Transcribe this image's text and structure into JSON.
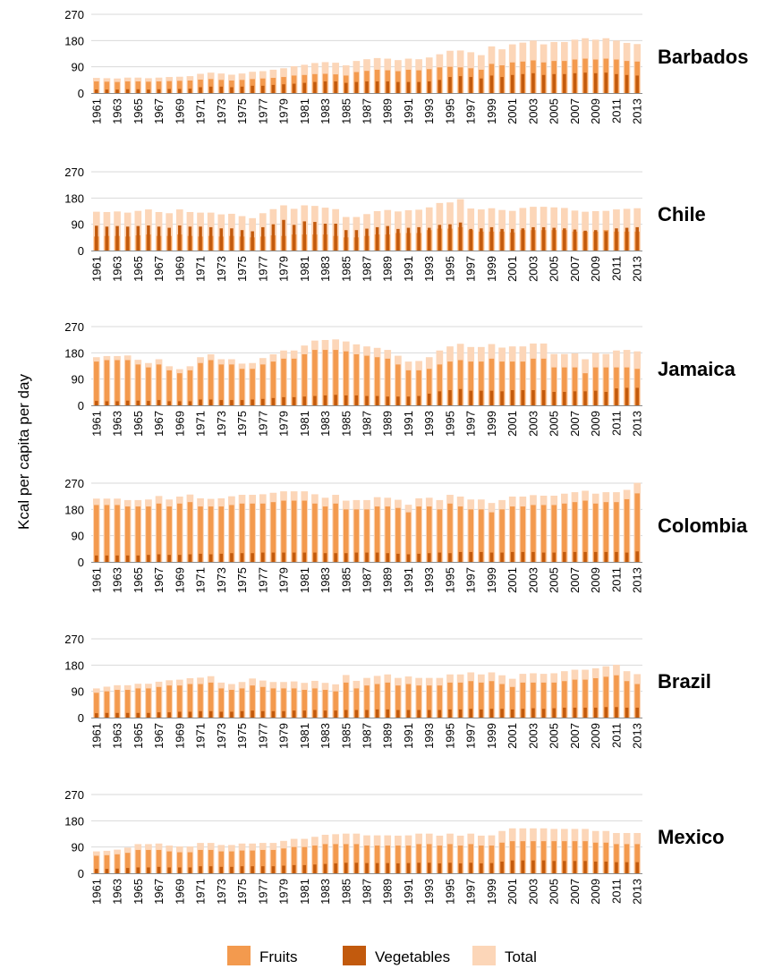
{
  "colors": {
    "fruits": "#f39a4e",
    "vegetables": "#c25a0d",
    "total": "#fcd6b8",
    "grid": "#d9d9d9",
    "axis": "#8c8c8c"
  },
  "legend": [
    {
      "key": "fruits",
      "label": "Fruits"
    },
    {
      "key": "vegetables",
      "label": "Vegetables"
    },
    {
      "key": "total",
      "label": "Total"
    }
  ],
  "chart_data": {
    "type": "bar",
    "ylabel": "Kcal per capita per day",
    "ylim": [
      0,
      270
    ],
    "yticks": [
      0,
      90,
      180,
      270
    ],
    "x": [
      1961,
      1962,
      1963,
      1964,
      1965,
      1966,
      1967,
      1968,
      1969,
      1970,
      1971,
      1972,
      1973,
      1974,
      1975,
      1976,
      1977,
      1978,
      1979,
      1980,
      1981,
      1982,
      1983,
      1984,
      1985,
      1986,
      1987,
      1988,
      1989,
      1990,
      1991,
      1992,
      1993,
      1994,
      1995,
      1996,
      1997,
      1998,
      1999,
      2000,
      2001,
      2002,
      2003,
      2004,
      2005,
      2006,
      2007,
      2008,
      2009,
      2010,
      2011,
      2012,
      2013
    ],
    "xtick_labels": [
      "1961",
      "1963",
      "1965",
      "1967",
      "1969",
      "1971",
      "1973",
      "1975",
      "1977",
      "1979",
      "1981",
      "1983",
      "1985",
      "1987",
      "1989",
      "1991",
      "1993",
      "1995",
      "1997",
      "1999",
      "2001",
      "2003",
      "2005",
      "2007",
      "2009",
      "2011",
      "2013"
    ],
    "grid": true,
    "legend_position": "bottom",
    "panels": [
      {
        "name": "Barbados",
        "fruits": [
          40,
          39,
          38,
          40,
          40,
          39,
          40,
          41,
          42,
          43,
          46,
          48,
          45,
          43,
          45,
          48,
          50,
          52,
          55,
          60,
          62,
          65,
          66,
          64,
          60,
          72,
          76,
          80,
          78,
          75,
          80,
          78,
          82,
          88,
          90,
          88,
          85,
          80,
          100,
          95,
          105,
          108,
          112,
          105,
          110,
          110,
          115,
          118,
          115,
          118,
          115,
          110,
          108
        ],
        "vegetables": [
          12,
          12,
          12,
          13,
          13,
          12,
          13,
          14,
          14,
          15,
          20,
          22,
          22,
          20,
          22,
          25,
          25,
          28,
          30,
          32,
          35,
          38,
          40,
          40,
          35,
          38,
          40,
          40,
          40,
          38,
          38,
          38,
          40,
          45,
          55,
          58,
          55,
          50,
          60,
          55,
          62,
          65,
          68,
          62,
          65,
          65,
          68,
          70,
          68,
          70,
          65,
          62,
          60
        ],
        "total": [
          52,
          51,
          50,
          53,
          53,
          51,
          53,
          55,
          56,
          58,
          66,
          70,
          67,
          63,
          67,
          73,
          75,
          80,
          85,
          92,
          97,
          103,
          106,
          104,
          95,
          110,
          116,
          120,
          118,
          113,
          118,
          116,
          122,
          133,
          145,
          146,
          140,
          130,
          160,
          150,
          167,
          173,
          180,
          167,
          175,
          175,
          183,
          188,
          183,
          188,
          180,
          172,
          168
        ]
      },
      {
        "name": "Chile",
        "fruits": [
          48,
          50,
          50,
          48,
          52,
          55,
          50,
          50,
          55,
          50,
          48,
          50,
          48,
          50,
          48,
          45,
          48,
          52,
          50,
          55,
          55,
          55,
          55,
          50,
          45,
          45,
          50,
          55,
          55,
          60,
          60,
          60,
          70,
          75,
          75,
          80,
          70,
          65,
          65,
          65,
          62,
          70,
          70,
          70,
          70,
          70,
          65,
          65,
          65,
          70,
          65,
          65,
          65
        ],
        "vegetables": [
          85,
          82,
          84,
          82,
          84,
          86,
          82,
          78,
          86,
          82,
          82,
          80,
          76,
          76,
          70,
          66,
          80,
          90,
          105,
          88,
          100,
          98,
          92,
          92,
          70,
          70,
          75,
          80,
          84,
          74,
          78,
          80,
          78,
          88,
          90,
          96,
          74,
          76,
          80,
          74,
          74,
          76,
          80,
          80,
          78,
          76,
          72,
          68,
          70,
          66,
          76,
          78,
          80
        ],
        "total": [
          133,
          132,
          134,
          130,
          136,
          141,
          132,
          128,
          141,
          132,
          130,
          130,
          124,
          126,
          118,
          111,
          128,
          142,
          155,
          143,
          155,
          153,
          147,
          142,
          115,
          115,
          125,
          135,
          139,
          134,
          138,
          140,
          148,
          163,
          165,
          176,
          144,
          141,
          145,
          139,
          136,
          146,
          150,
          150,
          148,
          146,
          137,
          133,
          135,
          136,
          141,
          143,
          145
        ]
      },
      {
        "name": "Jamaica",
        "fruits": [
          150,
          155,
          155,
          155,
          140,
          130,
          140,
          120,
          110,
          120,
          145,
          155,
          140,
          140,
          125,
          125,
          140,
          150,
          160,
          160,
          175,
          190,
          190,
          190,
          185,
          175,
          170,
          165,
          160,
          140,
          120,
          120,
          125,
          140,
          150,
          155,
          150,
          150,
          160,
          150,
          150,
          150,
          160,
          160,
          130,
          130,
          130,
          110,
          130,
          130,
          130,
          130,
          125
        ],
        "vegetables": [
          15,
          14,
          14,
          16,
          16,
          15,
          18,
          14,
          14,
          14,
          20,
          20,
          18,
          18,
          18,
          20,
          22,
          25,
          28,
          28,
          30,
          32,
          34,
          36,
          34,
          34,
          32,
          32,
          30,
          30,
          30,
          32,
          40,
          48,
          52,
          56,
          50,
          50,
          50,
          48,
          52,
          52,
          52,
          52,
          46,
          46,
          48,
          48,
          50,
          46,
          58,
          60,
          60
        ],
        "total": [
          165,
          169,
          169,
          171,
          156,
          145,
          158,
          134,
          124,
          134,
          165,
          175,
          158,
          158,
          143,
          145,
          162,
          175,
          188,
          188,
          205,
          222,
          224,
          226,
          219,
          209,
          202,
          197,
          190,
          170,
          150,
          152,
          165,
          188,
          202,
          211,
          200,
          200,
          210,
          198,
          202,
          202,
          212,
          212,
          176,
          176,
          178,
          158,
          180,
          176,
          188,
          190,
          185
        ]
      },
      {
        "name": "Colombia",
        "fruits": [
          195,
          195,
          195,
          190,
          190,
          190,
          200,
          190,
          200,
          205,
          190,
          190,
          190,
          195,
          200,
          200,
          200,
          205,
          210,
          210,
          210,
          200,
          190,
          200,
          180,
          180,
          180,
          190,
          190,
          185,
          170,
          190,
          190,
          180,
          200,
          190,
          180,
          180,
          170,
          180,
          190,
          190,
          195,
          195,
          195,
          200,
          205,
          210,
          200,
          205,
          205,
          215,
          235
        ],
        "vegetables": [
          22,
          22,
          22,
          22,
          22,
          24,
          26,
          24,
          24,
          26,
          28,
          26,
          28,
          30,
          30,
          30,
          32,
          32,
          32,
          32,
          32,
          32,
          30,
          30,
          30,
          32,
          32,
          32,
          30,
          28,
          26,
          28,
          30,
          32,
          30,
          34,
          34,
          34,
          32,
          32,
          34,
          34,
          34,
          32,
          32,
          34,
          34,
          34,
          34,
          34,
          34,
          32,
          36
        ],
        "total": [
          217,
          217,
          217,
          212,
          212,
          214,
          226,
          214,
          224,
          231,
          218,
          216,
          218,
          225,
          230,
          230,
          232,
          237,
          242,
          242,
          242,
          232,
          220,
          230,
          210,
          212,
          212,
          222,
          220,
          213,
          196,
          218,
          220,
          212,
          230,
          224,
          214,
          214,
          202,
          212,
          224,
          224,
          229,
          227,
          227,
          234,
          239,
          244,
          234,
          239,
          239,
          247,
          271
        ]
      },
      {
        "name": "Brazil",
        "fruits": [
          85,
          90,
          95,
          95,
          100,
          100,
          105,
          110,
          110,
          115,
          115,
          120,
          100,
          95,
          100,
          110,
          105,
          100,
          100,
          100,
          95,
          100,
          95,
          90,
          120,
          100,
          110,
          115,
          120,
          110,
          115,
          110,
          110,
          110,
          120,
          120,
          125,
          120,
          125,
          115,
          105,
          120,
          120,
          120,
          120,
          125,
          130,
          130,
          135,
          140,
          145,
          125,
          115
        ],
        "vegetables": [
          15,
          16,
          16,
          16,
          16,
          16,
          18,
          18,
          20,
          20,
          22,
          22,
          20,
          20,
          22,
          24,
          22,
          22,
          22,
          24,
          24,
          26,
          24,
          24,
          26,
          26,
          26,
          28,
          28,
          26,
          26,
          26,
          26,
          26,
          28,
          28,
          30,
          28,
          30,
          30,
          28,
          30,
          32,
          30,
          32,
          34,
          34,
          34,
          34,
          36,
          36,
          34,
          34
        ],
        "total": [
          100,
          106,
          111,
          111,
          116,
          116,
          123,
          128,
          130,
          135,
          137,
          142,
          120,
          115,
          122,
          134,
          127,
          122,
          122,
          124,
          119,
          126,
          119,
          114,
          146,
          126,
          136,
          143,
          148,
          136,
          141,
          136,
          136,
          136,
          148,
          148,
          155,
          148,
          155,
          145,
          133,
          150,
          152,
          150,
          152,
          159,
          164,
          164,
          169,
          176,
          181,
          159,
          149
        ]
      },
      {
        "name": "Mexico",
        "fruits": [
          60,
          62,
          65,
          70,
          80,
          80,
          80,
          75,
          72,
          72,
          80,
          80,
          75,
          75,
          78,
          78,
          80,
          80,
          85,
          90,
          90,
          95,
          100,
          100,
          100,
          100,
          95,
          95,
          95,
          95,
          95,
          100,
          100,
          95,
          100,
          95,
          100,
          95,
          95,
          105,
          110,
          110,
          110,
          110,
          110,
          110,
          110,
          110,
          105,
          105,
          100,
          100,
          100
        ],
        "vegetables": [
          15,
          15,
          16,
          18,
          20,
          20,
          22,
          20,
          20,
          20,
          24,
          24,
          22,
          22,
          24,
          24,
          24,
          24,
          26,
          28,
          28,
          30,
          32,
          34,
          36,
          36,
          35,
          35,
          35,
          34,
          35,
          36,
          36,
          34,
          36,
          34,
          36,
          34,
          35,
          40,
          44,
          44,
          44,
          44,
          42,
          42,
          42,
          42,
          40,
          40,
          38,
          38,
          38
        ],
        "total": [
          75,
          77,
          81,
          88,
          100,
          100,
          102,
          95,
          92,
          92,
          104,
          104,
          97,
          97,
          102,
          102,
          104,
          104,
          111,
          118,
          118,
          125,
          132,
          134,
          136,
          136,
          130,
          130,
          130,
          129,
          130,
          136,
          136,
          129,
          136,
          129,
          136,
          129,
          130,
          145,
          154,
          154,
          154,
          154,
          152,
          152,
          152,
          152,
          145,
          145,
          138,
          138,
          138
        ]
      }
    ]
  }
}
